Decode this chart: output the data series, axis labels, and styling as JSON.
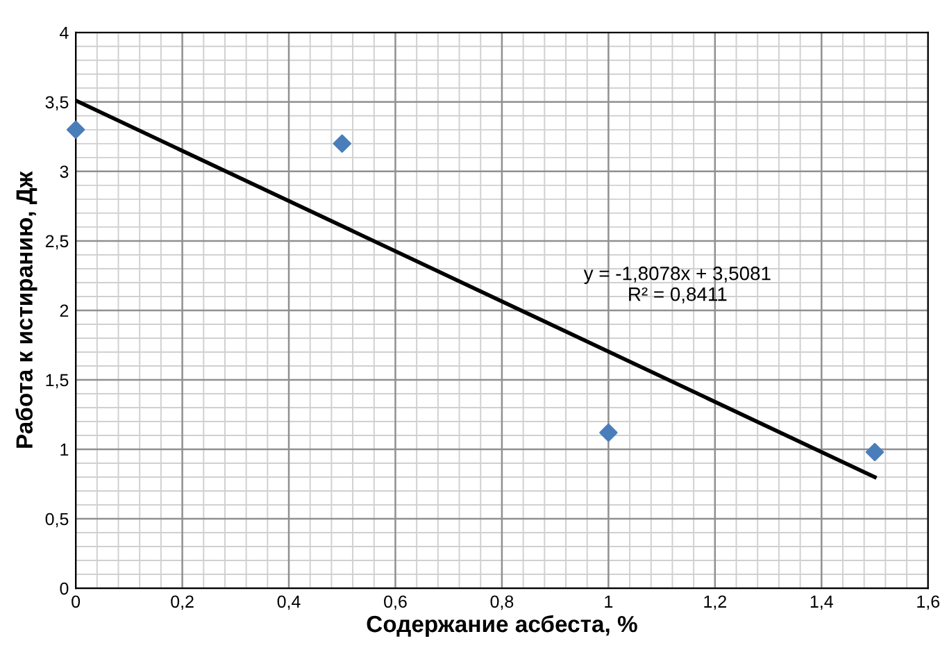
{
  "chart_data": {
    "type": "scatter",
    "xlabel": "Содержание асбеста, %",
    "ylabel": "Работа к истиранию, Дж",
    "x": [
      0,
      0.5,
      1,
      1.5
    ],
    "marker": "diamond",
    "series": [
      {
        "color": "#4a7ebb",
        "values": [
          3.3,
          3.2,
          1.12,
          0.98
        ]
      },
      {
        "type": "line",
        "color": "#000000",
        "marker": "none",
        "x": [
          0,
          1.5
        ],
        "values": [
          3.51,
          0.8
        ]
      }
    ],
    "annotations": [
      "y = -1,8078x + 3,5081\nR² = 0,8411"
    ],
    "xlim": [
      0,
      1.6
    ],
    "ylim": [
      0,
      4
    ],
    "xticks": [
      0,
      {
        "value": 0.2,
        "label": "0,2"
      },
      {
        "value": 0.4,
        "label": "0,4"
      },
      {
        "value": 0.6,
        "label": "0,6"
      },
      {
        "value": 0.8,
        "label": "0,8"
      },
      1,
      {
        "value": 1.2,
        "label": "1,2"
      },
      {
        "value": 1.4,
        "label": "1,4"
      },
      {
        "value": 1.6,
        "label": "1,6"
      }
    ],
    "yticks": [
      0,
      {
        "value": 0.5,
        "label": "0,5"
      },
      1,
      {
        "value": 1.5,
        "label": "1,5"
      },
      2,
      {
        "value": 2.5,
        "label": "2,5"
      },
      3,
      {
        "value": 3.5,
        "label": "3,5"
      },
      4
    ],
    "grid": true
  }
}
